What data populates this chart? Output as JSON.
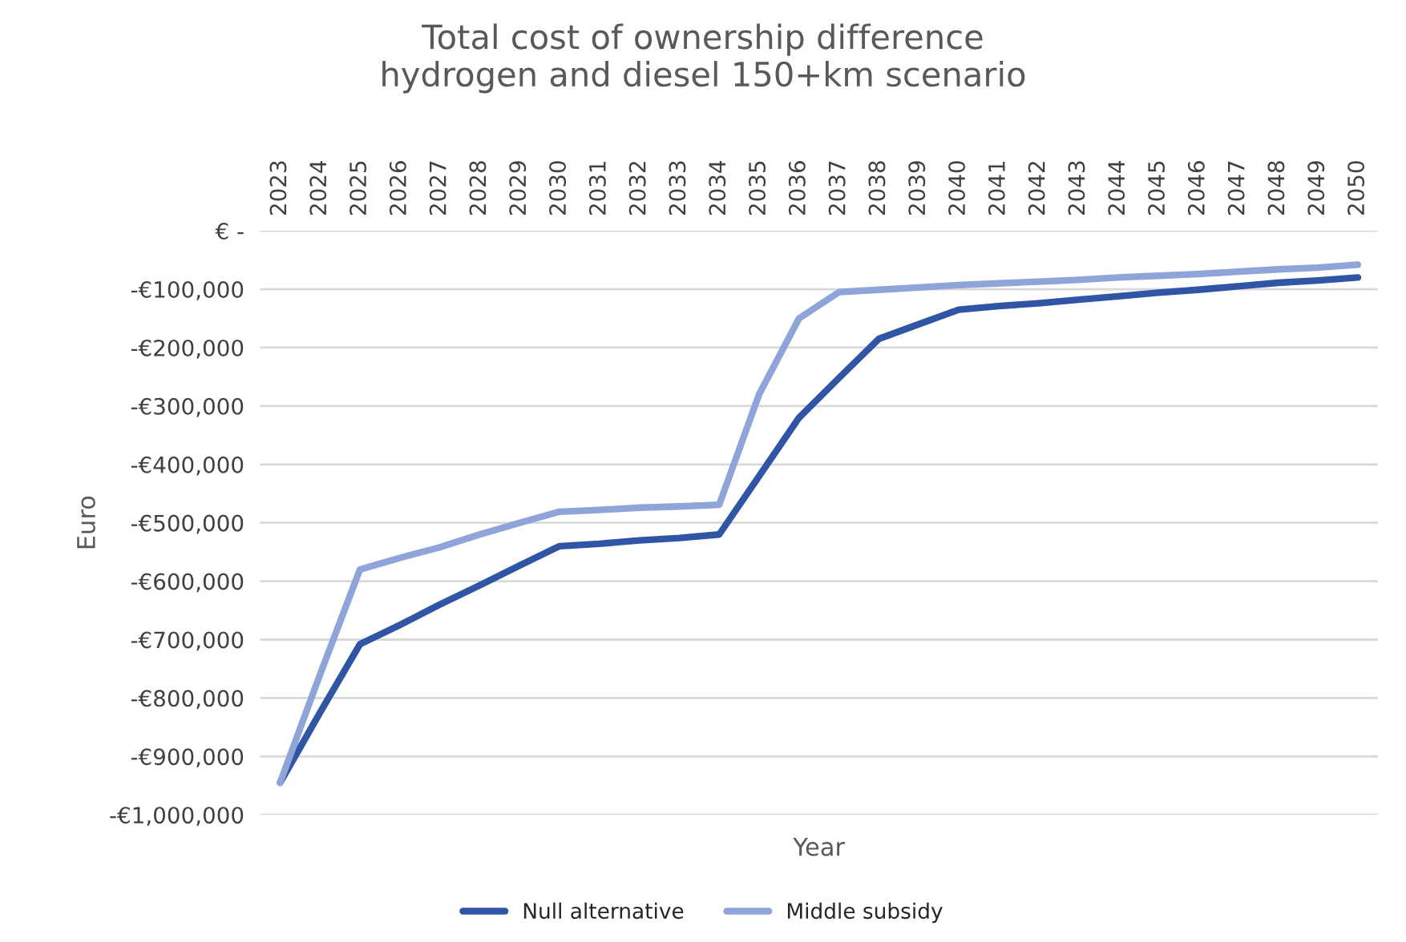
{
  "chart_data": {
    "type": "line",
    "title": "Total cost of ownership difference\nhydrogen and diesel 150+km scenario",
    "xlabel": "Year",
    "ylabel": "Euro",
    "categories": [
      "2023",
      "2024",
      "2025",
      "2026",
      "2027",
      "2028",
      "2029",
      "2030",
      "2031",
      "2032",
      "2033",
      "2034",
      "2035",
      "2036",
      "2037",
      "2038",
      "2039",
      "2040",
      "2041",
      "2042",
      "2043",
      "2044",
      "2045",
      "2046",
      "2047",
      "2048",
      "2049",
      "2050"
    ],
    "series": [
      {
        "name": "Null alternative",
        "color": "#2f55a4",
        "values": [
          -945000,
          -825000,
          -708000,
          -675000,
          -640000,
          -607000,
          -573000,
          -540000,
          -536000,
          -530000,
          -526000,
          -520000,
          -420000,
          -320000,
          -252000,
          -185000,
          -160000,
          -135000,
          -129000,
          -124000,
          -118000,
          -112000,
          -106000,
          -101000,
          -95000,
          -89000,
          -85000,
          -80000
        ]
      },
      {
        "name": "Middle subsidy",
        "color": "#8fa5d9",
        "values": [
          -945000,
          -760000,
          -580000,
          -560000,
          -542000,
          -520000,
          -500000,
          -481000,
          -478000,
          -474000,
          -472000,
          -469000,
          -280000,
          -150000,
          -105000,
          -101000,
          -97000,
          -93000,
          -90000,
          -87000,
          -84000,
          -80000,
          -77000,
          -74000,
          -70000,
          -66000,
          -63000,
          -58000
        ]
      }
    ],
    "ylim": [
      -1000000,
      0
    ],
    "yticks": [
      {
        "value": 0,
        "label": "€ -"
      },
      {
        "value": -100000,
        "label": "-€100,000"
      },
      {
        "value": -200000,
        "label": "-€200,000"
      },
      {
        "value": -300000,
        "label": "-€300,000"
      },
      {
        "value": -400000,
        "label": "-€400,000"
      },
      {
        "value": -500000,
        "label": "-€500,000"
      },
      {
        "value": -600000,
        "label": "-€600,000"
      },
      {
        "value": -700000,
        "label": "-€700,000"
      },
      {
        "value": -800000,
        "label": "-€800,000"
      },
      {
        "value": -900000,
        "label": "-€900,000"
      },
      {
        "value": -1000000,
        "label": "-€1,000,000"
      }
    ],
    "grid": "y",
    "legend": "bottom",
    "marker": "none",
    "line_style": "solid"
  }
}
